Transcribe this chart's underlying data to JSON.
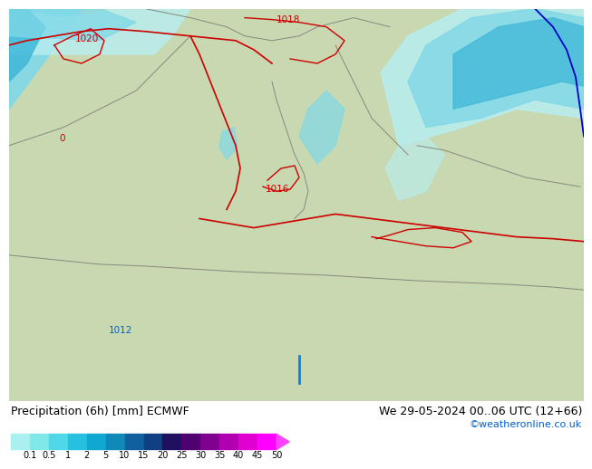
{
  "title_left": "Precipitation (6h) [mm] ECMWF",
  "title_right": "We 29-05-2024 00..06 UTC (12+66)",
  "credit": "©weatheronline.co.uk",
  "colorbar_levels": [
    0.1,
    0.5,
    1,
    2,
    5,
    10,
    15,
    20,
    25,
    30,
    35,
    40,
    45,
    50
  ],
  "colorbar_colors": [
    "#aaf0f0",
    "#80e8e8",
    "#50d8e8",
    "#28c0e0",
    "#10a8d0",
    "#1088b8",
    "#1060a0",
    "#104080",
    "#201060",
    "#500070",
    "#800090",
    "#b000b0",
    "#e000d0",
    "#ff00ff"
  ],
  "arrow_color": "#ff40ff",
  "land_color": "#c8d8b0",
  "sea_color": "#a0d8e8",
  "precip_light": "#b8eef0",
  "precip_med": "#80d8e8",
  "precip_dark": "#40b8d8",
  "precip_blue": "#6090c8",
  "land_gray": "#b8c8a8",
  "bg_white": "#ffffff",
  "text_red": "#cc0000",
  "text_blue": "#0060cc",
  "label_fontsize": 8.5,
  "credit_fontsize": 8,
  "title_fontsize": 9
}
